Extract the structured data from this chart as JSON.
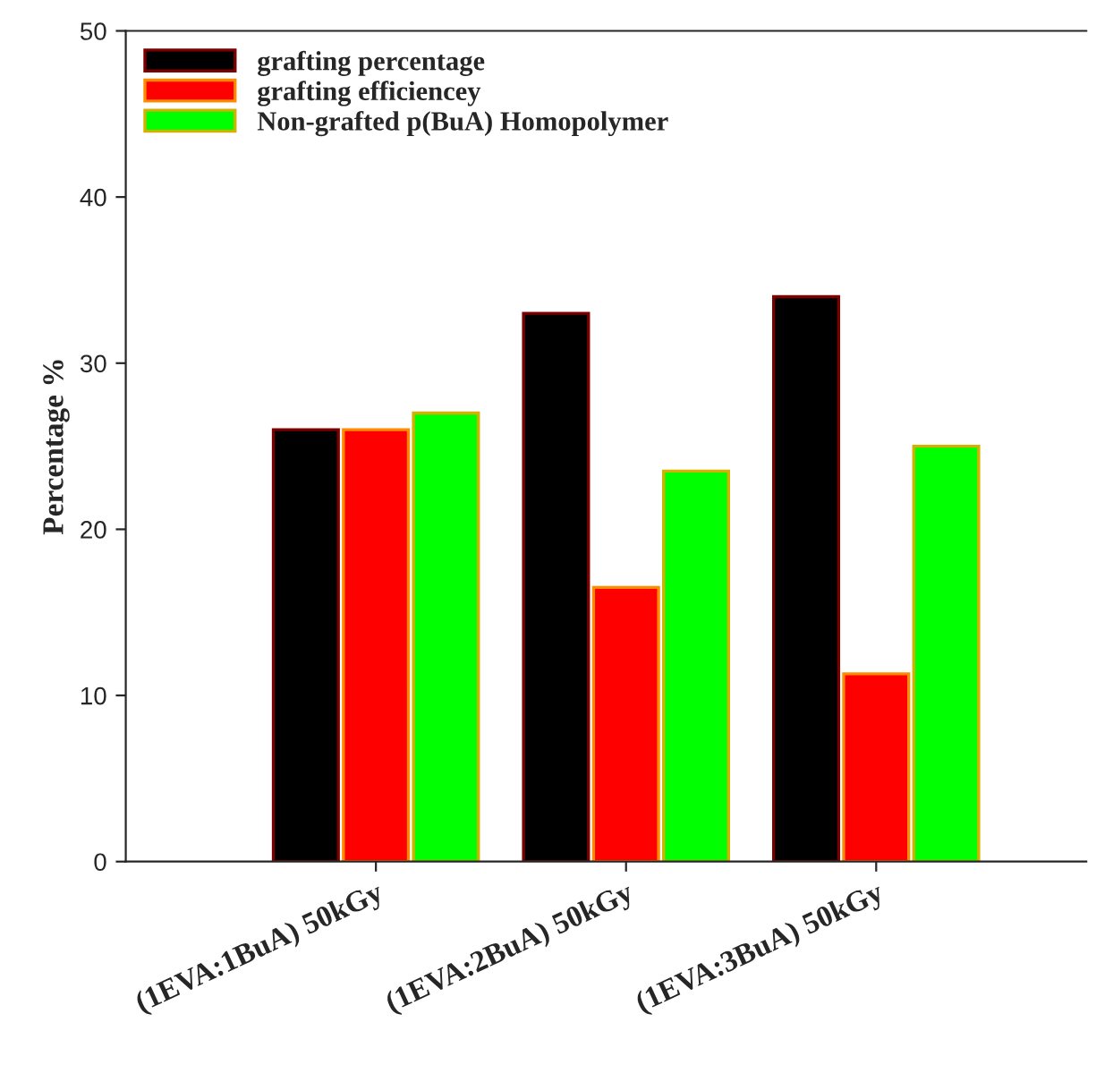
{
  "chart_data": {
    "type": "bar",
    "ylabel": "Percentage %",
    "categories": [
      "(1EVA:1BuA) 50kGy",
      "(1EVA:2BuA) 50kGy",
      "(1EVA:3BuA) 50kGy"
    ],
    "series": [
      {
        "name": "grafting percentage",
        "color": "#000000",
        "values": [
          26,
          33,
          34
        ]
      },
      {
        "name": "grafting efficiencey",
        "color": "#ff0000",
        "values": [
          26,
          16.5,
          11.3
        ]
      },
      {
        "name": "Non-grafted p(BuA) Homopolymer",
        "color": "#00ff00",
        "values": [
          27,
          23.5,
          25
        ]
      }
    ],
    "ylim": [
      0,
      50
    ],
    "yticks": [
      0,
      10,
      20,
      30,
      40,
      50
    ],
    "grid": false,
    "legend": "top left"
  }
}
